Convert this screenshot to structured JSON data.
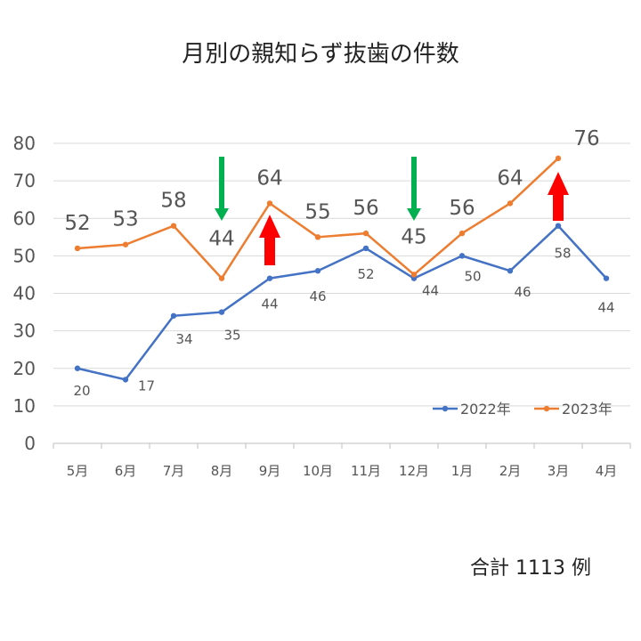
{
  "chart_data": {
    "type": "line",
    "title": "月別の親知らず抜歯の件数",
    "categories": [
      "5月",
      "6月",
      "7月",
      "8月",
      "9月",
      "10月",
      "11月",
      "12月",
      "1月",
      "2月",
      "3月",
      "4月"
    ],
    "series": [
      {
        "name": "2022年",
        "color": "#4472C4",
        "values": [
          20,
          17,
          34,
          35,
          44,
          46,
          52,
          44,
          50,
          46,
          58,
          44
        ]
      },
      {
        "name": "2023年",
        "color": "#ED7D31",
        "values": [
          52,
          53,
          58,
          44,
          64,
          55,
          56,
          45,
          56,
          64,
          76,
          null
        ]
      }
    ],
    "ylim": [
      0,
      80
    ],
    "yticks": [
      0,
      10,
      20,
      30,
      40,
      50,
      60,
      70,
      80
    ],
    "grid": true,
    "legend_position": "bottom-right",
    "arrows": [
      {
        "category": "8月",
        "direction": "down",
        "color": "#00B050"
      },
      {
        "category": "9月",
        "direction": "up",
        "color": "#FF0000"
      },
      {
        "category": "12月",
        "direction": "down",
        "color": "#00B050"
      },
      {
        "category": "3月",
        "direction": "up",
        "color": "#FF0000"
      }
    ]
  },
  "footer": {
    "total": "合計 1113 例"
  }
}
